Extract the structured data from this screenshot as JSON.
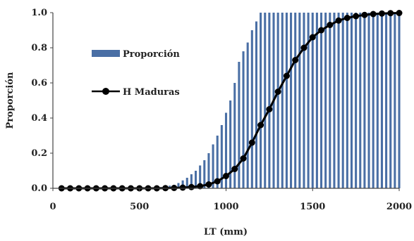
{
  "chart_data": {
    "type": "bar",
    "xlabel": "LT (mm)",
    "ylabel": "Proporción",
    "xlim": [
      0,
      2000
    ],
    "ylim": [
      0,
      1.0
    ],
    "x_ticks": [
      "0",
      "500",
      "1000",
      "1500",
      "2000"
    ],
    "y_ticks": [
      "0.0",
      "0.2",
      "0.4",
      "0.6",
      "0.8",
      "1.0"
    ],
    "grid": false,
    "legend_position": "upper-left",
    "series": [
      {
        "name": "Proporción",
        "type": "bar",
        "color": "#4a6fa5",
        "x": [
          600,
          625,
          650,
          675,
          700,
          725,
          750,
          775,
          800,
          825,
          850,
          875,
          900,
          925,
          950,
          975,
          1000,
          1025,
          1050,
          1075,
          1100,
          1125,
          1150,
          1175,
          1200,
          1225,
          1250,
          1275,
          1300,
          1325,
          1350,
          1375,
          1400,
          1425,
          1450,
          1475,
          1500,
          1525,
          1550,
          1575,
          1600,
          1625,
          1650,
          1675,
          1700,
          1725,
          1750,
          1775,
          1800,
          1825,
          1850,
          1875,
          1900,
          1925,
          1950,
          1975,
          2000
        ],
        "values": [
          0.005,
          0.007,
          0.01,
          0.015,
          0.02,
          0.03,
          0.045,
          0.06,
          0.08,
          0.1,
          0.13,
          0.16,
          0.2,
          0.25,
          0.3,
          0.36,
          0.43,
          0.5,
          0.6,
          0.72,
          0.78,
          0.83,
          0.9,
          0.95,
          1.0,
          1.0,
          1.0,
          1.0,
          1.0,
          1.0,
          1.0,
          1.0,
          1.0,
          1.0,
          1.0,
          1.0,
          1.0,
          1.0,
          1.0,
          1.0,
          1.0,
          1.0,
          1.0,
          1.0,
          1.0,
          1.0,
          1.0,
          1.0,
          1.0,
          1.0,
          1.0,
          1.0,
          1.0,
          1.0,
          1.0,
          1.0,
          1.0
        ]
      },
      {
        "name": "H Maduras",
        "type": "line",
        "color": "#000000",
        "x": [
          50,
          100,
          150,
          200,
          250,
          300,
          350,
          400,
          450,
          500,
          550,
          600,
          650,
          700,
          750,
          800,
          850,
          900,
          950,
          1000,
          1050,
          1100,
          1150,
          1200,
          1250,
          1300,
          1350,
          1400,
          1450,
          1500,
          1550,
          1600,
          1650,
          1700,
          1750,
          1800,
          1850,
          1900,
          1950,
          2000
        ],
        "values": [
          0,
          0,
          0,
          0,
          0,
          0,
          0,
          0,
          0,
          0,
          0,
          0,
          0.001,
          0.002,
          0.004,
          0.007,
          0.012,
          0.022,
          0.04,
          0.07,
          0.11,
          0.17,
          0.26,
          0.36,
          0.45,
          0.55,
          0.64,
          0.73,
          0.8,
          0.86,
          0.9,
          0.93,
          0.955,
          0.97,
          0.98,
          0.987,
          0.992,
          0.995,
          0.997,
          0.998
        ]
      }
    ]
  }
}
